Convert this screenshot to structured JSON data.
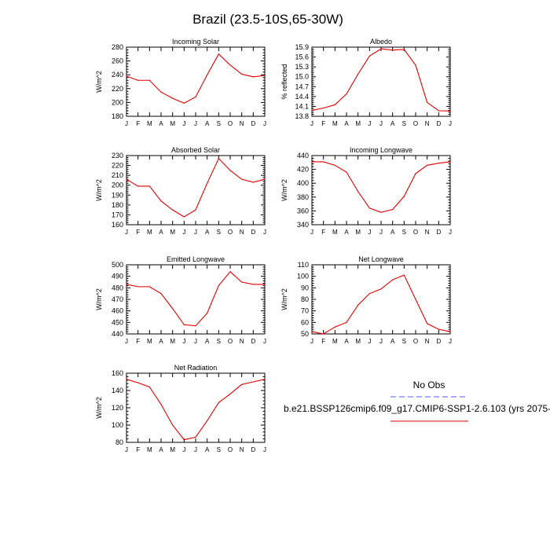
{
  "figure": {
    "title": "Brazil (23.5-10S,65-30W)",
    "legend": {
      "obs_label": "No Obs",
      "model_label": "b.e21.BSSP126cmip6.f09_g17.CMIP6-SSP1-2.6.103 (yrs 2075-",
      "obs_color": "#5555ff",
      "model_color": "#e00000"
    }
  },
  "chart_data": [
    {
      "type": "line",
      "title": "Incoming Solar",
      "ylabel": "W/m^2",
      "categories": [
        "J",
        "F",
        "M",
        "A",
        "M",
        "J",
        "J",
        "A",
        "S",
        "O",
        "N",
        "D",
        "J"
      ],
      "ylim": [
        180,
        280
      ],
      "yticks": [
        180,
        200,
        220,
        240,
        260,
        280
      ],
      "series": [
        {
          "values": [
            238,
            232,
            232,
            215,
            206,
            199,
            208,
            240,
            270,
            254,
            241,
            237,
            239
          ]
        }
      ]
    },
    {
      "type": "line",
      "title": "Albedo",
      "ylabel": "% reflected",
      "categories": [
        "J",
        "F",
        "M",
        "A",
        "M",
        "J",
        "J",
        "A",
        "S",
        "O",
        "N",
        "D",
        "J"
      ],
      "ylim": [
        13.8,
        15.9
      ],
      "yticks": [
        13.8,
        14.1,
        14.4,
        14.7,
        15.0,
        15.3,
        15.6,
        15.9
      ],
      "series": [
        {
          "values": [
            13.98,
            14.05,
            14.15,
            14.48,
            15.08,
            15.63,
            15.85,
            15.81,
            15.83,
            15.35,
            14.22,
            13.97,
            13.96
          ]
        }
      ]
    },
    {
      "type": "line",
      "title": "Absorbed Solar",
      "ylabel": "W/m^2",
      "categories": [
        "J",
        "F",
        "M",
        "A",
        "M",
        "J",
        "J",
        "A",
        "S",
        "O",
        "N",
        "D",
        "J"
      ],
      "ylim": [
        160,
        230
      ],
      "yticks": [
        160,
        170,
        180,
        190,
        200,
        210,
        220,
        230
      ],
      "series": [
        {
          "values": [
            206,
            199,
            199,
            184,
            175,
            168,
            175,
            202,
            227,
            215,
            206,
            203,
            206
          ]
        }
      ]
    },
    {
      "type": "line",
      "title": "Incoming Longwave",
      "ylabel": "W/m^2",
      "categories": [
        "J",
        "F",
        "M",
        "A",
        "M",
        "J",
        "J",
        "A",
        "S",
        "O",
        "N",
        "D",
        "J"
      ],
      "ylim": [
        340,
        440
      ],
      "yticks": [
        340,
        360,
        380,
        400,
        420,
        440
      ],
      "series": [
        {
          "values": [
            431,
            431,
            426,
            416,
            388,
            364,
            358,
            362,
            381,
            414,
            426,
            429,
            431
          ]
        }
      ]
    },
    {
      "type": "line",
      "title": "Emitted Longwave",
      "ylabel": "W/m^2",
      "categories": [
        "J",
        "F",
        "M",
        "A",
        "M",
        "J",
        "J",
        "A",
        "S",
        "O",
        "N",
        "D",
        "J"
      ],
      "ylim": [
        440,
        500
      ],
      "yticks": [
        440,
        450,
        460,
        470,
        480,
        490,
        500
      ],
      "series": [
        {
          "values": [
            483,
            481,
            481,
            475,
            462,
            448,
            447,
            458,
            482,
            494,
            485,
            483,
            483
          ]
        }
      ]
    },
    {
      "type": "line",
      "title": "Net Longwave",
      "ylabel": "W/m^2",
      "categories": [
        "J",
        "F",
        "M",
        "A",
        "M",
        "J",
        "J",
        "A",
        "S",
        "O",
        "N",
        "D",
        "J"
      ],
      "ylim": [
        50,
        110
      ],
      "yticks": [
        50,
        60,
        70,
        80,
        90,
        100,
        110
      ],
      "series": [
        {
          "values": [
            52,
            50,
            56,
            60,
            75,
            85,
            89,
            97,
            101,
            80,
            59,
            54,
            52
          ]
        }
      ]
    },
    {
      "type": "line",
      "title": "Net Radiation",
      "ylabel": "W/m^2",
      "categories": [
        "J",
        "F",
        "M",
        "A",
        "M",
        "J",
        "J",
        "A",
        "S",
        "O",
        "N",
        "D",
        "J"
      ],
      "ylim": [
        80,
        160
      ],
      "yticks": [
        80,
        100,
        120,
        140,
        160
      ],
      "series": [
        {
          "values": [
            153,
            149,
            144,
            124,
            100,
            83,
            86,
            105,
            126,
            136,
            147,
            150,
            153
          ]
        }
      ]
    }
  ]
}
